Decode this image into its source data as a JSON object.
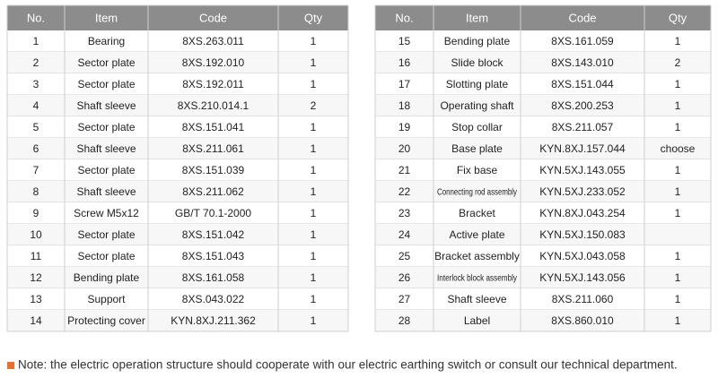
{
  "tables": [
    {
      "columns": [
        "No.",
        "Item",
        "Code",
        "Qty"
      ],
      "rows": [
        [
          "1",
          "Bearing",
          "8XS.263.011",
          "1"
        ],
        [
          "2",
          "Sector plate",
          "8XS.192.010",
          "1"
        ],
        [
          "3",
          "Sector plate",
          "8XS.192.011",
          "1"
        ],
        [
          "4",
          "Shaft sleeve",
          "8XS.210.014.1",
          "2"
        ],
        [
          "5",
          "Sector plate",
          "8XS.151.041",
          "1"
        ],
        [
          "6",
          "Shaft sleeve",
          "8XS.211.061",
          "1"
        ],
        [
          "7",
          "Sector plate",
          "8XS.151.039",
          "1"
        ],
        [
          "8",
          "Shaft sleeve",
          "8XS.211.062",
          "1"
        ],
        [
          "9",
          "Screw M5x12",
          "GB/T 70.1-2000",
          "1"
        ],
        [
          "10",
          "Sector plate",
          "8XS.151.042",
          "1"
        ],
        [
          "11",
          "Sector plate",
          "8XS.151.043",
          "1"
        ],
        [
          "12",
          "Bending plate",
          "8XS.161.058",
          "1"
        ],
        [
          "13",
          "Support",
          "8XS.043.022",
          "1"
        ],
        [
          "14",
          "Protecting cover",
          "KYN.8XJ.211.362",
          "1"
        ]
      ]
    },
    {
      "columns": [
        "No.",
        "Item",
        "Code",
        "Qty"
      ],
      "rows": [
        [
          "15",
          "Bending plate",
          "8XS.161.059",
          "1"
        ],
        [
          "16",
          "Slide block",
          "8XS.143.010",
          "2"
        ],
        [
          "17",
          "Slotting plate",
          "8XS.151.044",
          "1"
        ],
        [
          "18",
          "Operating shaft",
          "8XS.200.253",
          "1"
        ],
        [
          "19",
          "Stop collar",
          "8XS.211.057",
          "1"
        ],
        [
          "20",
          "Base plate",
          "KYN.8XJ.157.044",
          "choose"
        ],
        [
          "21",
          "Fix base",
          "KYN.5XJ.143.055",
          "1"
        ],
        [
          "22",
          "Connecting rod assembly",
          "KYN.5XJ.233.052",
          "1"
        ],
        [
          "23",
          "Bracket",
          "KYN.8XJ.043.254",
          "1"
        ],
        [
          "24",
          "Active plate",
          "KYN.5XJ.150.083",
          null
        ],
        [
          "25",
          "Bracket assembly",
          "KYN.5XJ.043.058",
          "1"
        ],
        [
          "26",
          "Interlock block assembly",
          "KYN.5XJ.143.056",
          "1"
        ],
        [
          "27",
          "Shaft sleeve",
          "8XS.211.060",
          "1"
        ],
        [
          "28",
          "Label",
          "8XS.860.010",
          "1"
        ]
      ]
    }
  ],
  "note": "Note: the electric operation structure should cooperate with our electric earthing switch or consult our technical department."
}
